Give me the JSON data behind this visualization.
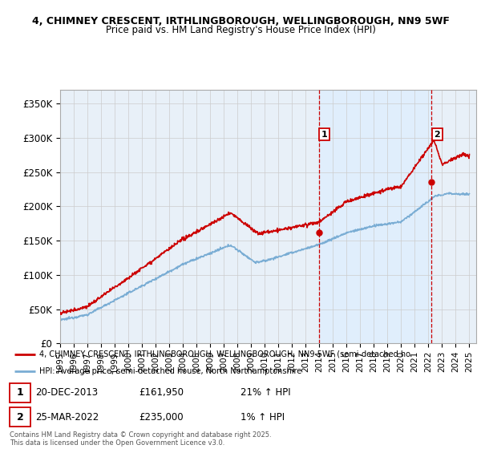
{
  "title1": "4, CHIMNEY CRESCENT, IRTHLINGBOROUGH, WELLINGBOROUGH, NN9 5WF",
  "title2": "Price paid vs. HM Land Registry's House Price Index (HPI)",
  "ylim": [
    0,
    370000
  ],
  "yticks": [
    0,
    50000,
    100000,
    150000,
    200000,
    250000,
    300000,
    350000
  ],
  "ytick_labels": [
    "£0",
    "£50K",
    "£100K",
    "£150K",
    "£200K",
    "£250K",
    "£300K",
    "£350K"
  ],
  "xlim_start": 1995.0,
  "xlim_end": 2025.5,
  "legend_line1": "4, CHIMNEY CRESCENT, IRTHLINGBOROUGH, WELLINGBOROUGH, NN9 5WF (semi-detached ho",
  "legend_line2": "HPI: Average price, semi-detached house, North Northamptonshire",
  "point1_x": 2013.97,
  "point1_y": 161950,
  "point1_label": "1",
  "point1_date": "20-DEC-2013",
  "point1_price": "£161,950",
  "point1_hpi": "21% ↑ HPI",
  "point2_x": 2022.23,
  "point2_y": 235000,
  "point2_label": "2",
  "point2_date": "25-MAR-2022",
  "point2_price": "£235,000",
  "point2_hpi": "1% ↑ HPI",
  "footer": "Contains HM Land Registry data © Crown copyright and database right 2025.\nThis data is licensed under the Open Government Licence v3.0.",
  "red_color": "#cc0000",
  "blue_color": "#7aadd4",
  "shade_color": "#ddeeff",
  "bg_color": "#e8f0f8",
  "grid_color": "#cccccc"
}
